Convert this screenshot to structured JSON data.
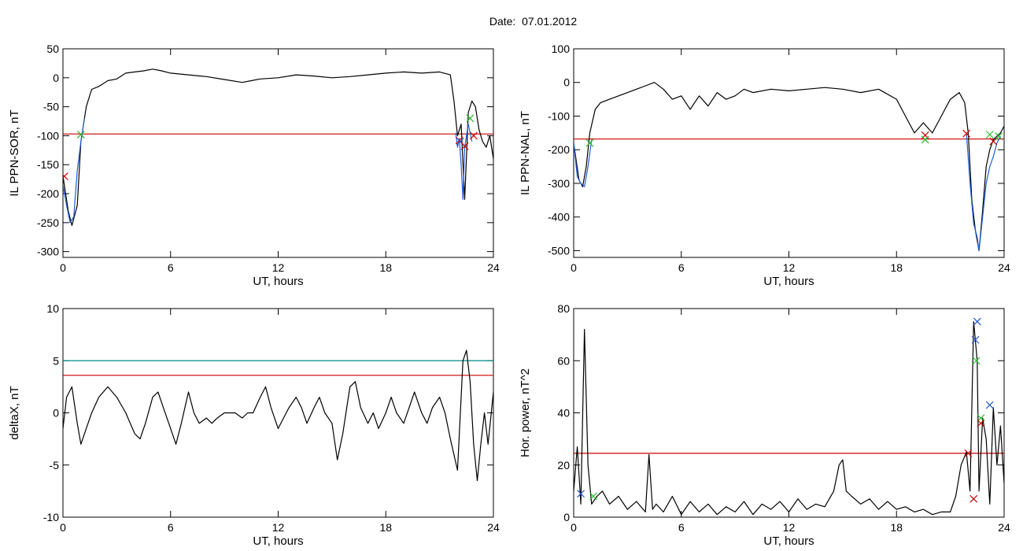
{
  "page": {
    "title": "Date:  07.01.2012"
  },
  "chart_data": [
    {
      "id": "ppn-sor",
      "type": "line",
      "xlabel": "UT, hours",
      "ylabel": "IL PPN-SOR, nT",
      "xlim": [
        0,
        24
      ],
      "ylim": [
        -310,
        50
      ],
      "xticks": [
        0,
        6,
        12,
        18,
        24
      ],
      "yticks": [
        -300,
        -250,
        -200,
        -150,
        -100,
        -50,
        0,
        50
      ],
      "series": [
        {
          "color": "#000000",
          "x": [
            0,
            0.3,
            0.5,
            0.8,
            1.0,
            1.3,
            1.6,
            2.0,
            2.5,
            3.0,
            3.5,
            4.0,
            4.5,
            5.0,
            5.5,
            6.0,
            7.0,
            8.0,
            9.0,
            10.0,
            10.5,
            11.0,
            12.0,
            13.0,
            14.0,
            15.0,
            16.0,
            17.0,
            18.0,
            19.0,
            20.0,
            21.0,
            21.6,
            21.8,
            22.0,
            22.2,
            22.4,
            22.6,
            22.8,
            23.0,
            23.2,
            23.4,
            23.6,
            23.8,
            24.0
          ],
          "y": [
            -170,
            -230,
            -255,
            -220,
            -110,
            -50,
            -20,
            -15,
            -5,
            -2,
            8,
            10,
            12,
            15,
            12,
            8,
            5,
            2,
            -3,
            -8,
            -5,
            -2,
            0,
            5,
            3,
            0,
            2,
            5,
            8,
            10,
            8,
            10,
            5,
            -40,
            -100,
            -80,
            -210,
            -60,
            -40,
            -50,
            -90,
            -110,
            -120,
            -100,
            -140
          ]
        },
        {
          "color": "#1f5fd6",
          "x": [
            0,
            0.2,
            0.4,
            0.6,
            0.8,
            1.0,
            1.2
          ],
          "y": [
            -185,
            -220,
            -250,
            -240,
            -160,
            -110,
            -70
          ]
        },
        {
          "color": "#1f5fd6",
          "x": [
            21.9,
            22.0,
            22.1,
            22.2,
            22.3,
            22.4,
            22.6,
            22.8
          ],
          "y": [
            -95,
            -120,
            -105,
            -150,
            -210,
            -120,
            -80,
            -110
          ]
        }
      ],
      "hlines": [
        {
          "y": -97,
          "color": "#cc0000"
        }
      ],
      "markers": [
        {
          "x": 0.08,
          "y": -170,
          "color": "#cc0000"
        },
        {
          "x": 1.0,
          "y": -98,
          "color": "#22bb22"
        },
        {
          "x": 22.1,
          "y": -108,
          "color": "#cc0000"
        },
        {
          "x": 22.15,
          "y": -110,
          "color": "#2255cc"
        },
        {
          "x": 22.4,
          "y": -118,
          "color": "#cc0000"
        },
        {
          "x": 22.7,
          "y": -70,
          "color": "#22bb22"
        },
        {
          "x": 22.9,
          "y": -100,
          "color": "#cc0000"
        }
      ]
    },
    {
      "id": "ppn-nal",
      "type": "line",
      "xlabel": "UT, hours",
      "ylabel": "IL PPN-NAL, nT",
      "xlim": [
        0,
        24
      ],
      "ylim": [
        -520,
        100
      ],
      "xticks": [
        0,
        6,
        12,
        18,
        24
      ],
      "yticks": [
        -500,
        -400,
        -300,
        -200,
        -100,
        0,
        100
      ],
      "series": [
        {
          "color": "#000000",
          "x": [
            0,
            0.3,
            0.5,
            0.7,
            0.9,
            1.2,
            1.5,
            2.0,
            2.5,
            3.0,
            3.5,
            4.0,
            4.5,
            5.0,
            5.5,
            6.0,
            6.5,
            7.0,
            7.5,
            8.0,
            8.5,
            9.0,
            9.5,
            10.0,
            11.0,
            12.0,
            13.0,
            14.0,
            15.0,
            16.0,
            17.0,
            18.0,
            18.5,
            19.0,
            19.5,
            20.0,
            20.5,
            21.0,
            21.5,
            21.8,
            22.0,
            22.2,
            22.4,
            22.6,
            22.8,
            23.0,
            23.2,
            23.4,
            23.6,
            23.8,
            24.0
          ],
          "y": [
            -180,
            -290,
            -310,
            -250,
            -150,
            -80,
            -60,
            -50,
            -40,
            -30,
            -20,
            -10,
            0,
            -20,
            -50,
            -40,
            -80,
            -40,
            -70,
            -30,
            -50,
            -40,
            -20,
            -30,
            -20,
            -25,
            -20,
            -15,
            -20,
            -30,
            -20,
            -50,
            -100,
            -150,
            -120,
            -150,
            -100,
            -50,
            -30,
            -60,
            -150,
            -350,
            -440,
            -500,
            -380,
            -250,
            -200,
            -170,
            -160,
            -150,
            -130
          ]
        },
        {
          "color": "#1f5fd6",
          "x": [
            0,
            0.2,
            0.4,
            0.6,
            0.8,
            1.0
          ],
          "y": [
            -180,
            -280,
            -300,
            -310,
            -250,
            -170
          ]
        },
        {
          "color": "#1f5fd6",
          "x": [
            21.9,
            22.1,
            22.3,
            22.5,
            22.6,
            22.8,
            23.0,
            23.2,
            23.4,
            23.6,
            23.8
          ],
          "y": [
            -150,
            -300,
            -420,
            -460,
            -500,
            -400,
            -300,
            -250,
            -220,
            -180,
            -160
          ]
        }
      ],
      "hlines": [
        {
          "y": -168,
          "color": "#cc0000"
        }
      ],
      "markers": [
        {
          "x": 0.9,
          "y": -180,
          "color": "#22bb22"
        },
        {
          "x": 19.6,
          "y": -157,
          "color": "#cc0000"
        },
        {
          "x": 19.6,
          "y": -170,
          "color": "#22bb22"
        },
        {
          "x": 21.9,
          "y": -152,
          "color": "#cc0000"
        },
        {
          "x": 23.2,
          "y": -155,
          "color": "#22bb22"
        },
        {
          "x": 23.4,
          "y": -175,
          "color": "#cc0000"
        },
        {
          "x": 23.7,
          "y": -160,
          "color": "#22bb22"
        }
      ]
    },
    {
      "id": "deltax",
      "type": "line",
      "xlabel": "UT, hours",
      "ylabel": "deltaX, nT",
      "xlim": [
        0,
        24
      ],
      "ylim": [
        -10,
        10
      ],
      "xticks": [
        0,
        6,
        12,
        18,
        24
      ],
      "yticks": [
        -10,
        -5,
        0,
        5,
        10
      ],
      "series": [
        {
          "color": "#000000",
          "x": [
            0,
            0.2,
            0.5,
            0.8,
            1.0,
            1.3,
            1.6,
            2.0,
            2.5,
            3.0,
            3.5,
            4.0,
            4.3,
            4.6,
            5.0,
            5.3,
            5.6,
            6.0,
            6.3,
            6.6,
            7.0,
            7.3,
            7.6,
            8.0,
            8.3,
            8.6,
            9.0,
            9.3,
            9.6,
            10.0,
            10.3,
            10.6,
            11.0,
            11.3,
            11.6,
            12.0,
            12.3,
            12.6,
            13.0,
            13.3,
            13.6,
            14.0,
            14.3,
            14.6,
            15.0,
            15.3,
            15.6,
            16.0,
            16.3,
            16.6,
            17.0,
            17.3,
            17.6,
            18.0,
            18.3,
            18.6,
            19.0,
            19.3,
            19.6,
            20.0,
            20.3,
            20.6,
            21.0,
            21.3,
            21.6,
            22.0,
            22.3,
            22.5,
            22.7,
            22.9,
            23.1,
            23.3,
            23.5,
            23.7,
            24.0
          ],
          "y": [
            -1.5,
            1.5,
            2.5,
            -1,
            -3,
            -1.5,
            0,
            1.5,
            2.5,
            1.5,
            0,
            -2,
            -2.5,
            -1,
            1.5,
            2,
            0.5,
            -1.5,
            -3,
            -1,
            2,
            0,
            -1,
            -0.5,
            -1,
            -0.5,
            0,
            0,
            0,
            -0.5,
            0,
            0,
            1.5,
            2.5,
            0.5,
            -1.5,
            -0.5,
            0.5,
            1.5,
            0.5,
            -1,
            0.5,
            1.5,
            0,
            -1,
            -4.5,
            -2,
            2.5,
            3,
            0.5,
            -1,
            0,
            -1.5,
            0,
            1.5,
            0,
            -1,
            0.5,
            2,
            0,
            -1,
            0.5,
            1.5,
            0,
            -2.5,
            -5.5,
            5,
            6,
            3,
            -3,
            -6.5,
            -3,
            0,
            -3,
            2
          ]
        }
      ],
      "hlines": [
        {
          "y": 5,
          "color": "#008b8b"
        },
        {
          "y": 3.6,
          "color": "#cc0000"
        }
      ],
      "markers": []
    },
    {
      "id": "hor-power",
      "type": "line",
      "xlabel": "UT, hours",
      "ylabel": "Hor. power, nT^2",
      "xlim": [
        0,
        24
      ],
      "ylim": [
        0,
        80
      ],
      "xticks": [
        0,
        6,
        12,
        18,
        24
      ],
      "yticks": [
        0,
        20,
        40,
        60,
        80
      ],
      "series": [
        {
          "color": "#000000",
          "x": [
            0,
            0.2,
            0.4,
            0.6,
            0.8,
            1.0,
            1.3,
            1.6,
            2.0,
            2.5,
            3.0,
            3.5,
            4.0,
            4.2,
            4.4,
            4.6,
            5.0,
            5.5,
            6.0,
            6.5,
            7.0,
            7.5,
            8.0,
            8.5,
            9.0,
            9.5,
            10.0,
            10.5,
            11.0,
            11.5,
            12.0,
            12.5,
            13.0,
            13.5,
            14.0,
            14.5,
            14.8,
            15.0,
            15.2,
            15.5,
            16.0,
            16.5,
            17.0,
            17.5,
            18.0,
            18.5,
            19.0,
            19.5,
            20.0,
            20.5,
            21.0,
            21.3,
            21.6,
            21.9,
            22.1,
            22.3,
            22.5,
            22.6,
            22.8,
            23.0,
            23.2,
            23.4,
            23.6,
            23.8,
            24.0
          ],
          "y": [
            10,
            27,
            5,
            72,
            20,
            5,
            8,
            10,
            5,
            8,
            3,
            6,
            2,
            24,
            3,
            5,
            2,
            8,
            1,
            6,
            2,
            5,
            1,
            4,
            2,
            6,
            1,
            5,
            3,
            6,
            2,
            7,
            3,
            5,
            4,
            10,
            20,
            22,
            10,
            8,
            5,
            7,
            3,
            6,
            3,
            4,
            2,
            3,
            1,
            2,
            2,
            8,
            20,
            25,
            10,
            75,
            60,
            10,
            38,
            30,
            5,
            42,
            20,
            35,
            13
          ]
        }
      ],
      "hlines": [
        {
          "y": 24.5,
          "color": "#cc0000"
        }
      ],
      "markers": [
        {
          "x": 0.4,
          "y": 9,
          "color": "#2255cc"
        },
        {
          "x": 1.1,
          "y": 8,
          "color": "#22bb22"
        },
        {
          "x": 22.0,
          "y": 24.5,
          "color": "#cc0000"
        },
        {
          "x": 22.3,
          "y": 7,
          "color": "#cc0000"
        },
        {
          "x": 22.4,
          "y": 68,
          "color": "#2255cc"
        },
        {
          "x": 22.5,
          "y": 75,
          "color": "#2255cc"
        },
        {
          "x": 22.45,
          "y": 60,
          "color": "#22bb22"
        },
        {
          "x": 22.7,
          "y": 38,
          "color": "#22bb22"
        },
        {
          "x": 22.7,
          "y": 36,
          "color": "#cc0000"
        },
        {
          "x": 23.2,
          "y": 43,
          "color": "#2255cc"
        }
      ]
    }
  ]
}
